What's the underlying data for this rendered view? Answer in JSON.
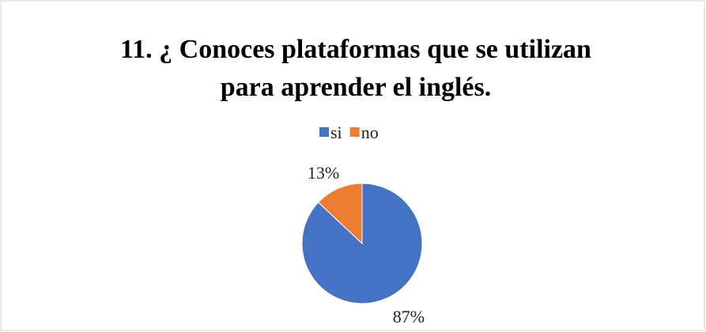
{
  "chart_data": {
    "type": "pie",
    "title": [
      "11.  ¿ Conoces  plataformas que se utilizan",
      "para aprender el  inglés."
    ],
    "categories": [
      "si",
      "no"
    ],
    "values": [
      87,
      13
    ],
    "value_labels": [
      "87%",
      "13%"
    ],
    "colors": [
      "#4472c4",
      "#ed7d31"
    ],
    "legend": "top"
  }
}
